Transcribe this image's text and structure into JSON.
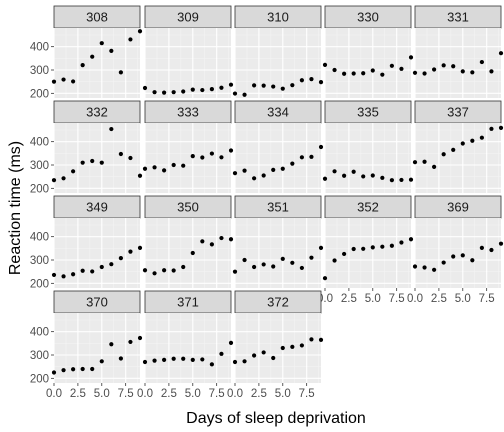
{
  "chart_data": {
    "type": "scatter",
    "facet_by": "Subject",
    "xlabel": "Days of sleep deprivation",
    "ylabel": "Reaction time (ms)",
    "xlim": [
      0,
      9
    ],
    "ylim": [
      180,
      480
    ],
    "x_ticks": [
      0,
      2.5,
      5,
      7.5
    ],
    "x_tick_labels": [
      "0.0",
      "2.5",
      "5.0",
      "7.5"
    ],
    "y_ticks": [
      200,
      300,
      400
    ],
    "y_tick_labels": [
      "200",
      "300",
      "400"
    ],
    "x": [
      0,
      1,
      2,
      3,
      4,
      5,
      6,
      7,
      8,
      9
    ],
    "panels": [
      {
        "name": "308",
        "values": [
          250,
          259,
          251,
          321,
          357,
          415,
          382,
          290,
          431,
          466
        ]
      },
      {
        "name": "309",
        "values": [
          223,
          205,
          203,
          205,
          208,
          216,
          214,
          218,
          224,
          237
        ]
      },
      {
        "name": "310",
        "values": [
          199,
          194,
          234,
          233,
          229,
          220,
          235,
          256,
          261,
          248
        ]
      },
      {
        "name": "330",
        "values": [
          322,
          300,
          284,
          285,
          286,
          298,
          280,
          318,
          305,
          354
        ]
      },
      {
        "name": "331",
        "values": [
          288,
          285,
          302,
          320,
          316,
          294,
          290,
          334,
          294,
          372
        ]
      },
      {
        "name": "332",
        "values": [
          235,
          243,
          273,
          310,
          317,
          310,
          454,
          347,
          330,
          254
        ]
      },
      {
        "name": "333",
        "values": [
          284,
          290,
          277,
          300,
          297,
          338,
          332,
          349,
          333,
          362
        ]
      },
      {
        "name": "334",
        "values": [
          265,
          276,
          243,
          255,
          279,
          284,
          306,
          333,
          335,
          377
        ]
      },
      {
        "name": "335",
        "values": [
          241,
          273,
          254,
          271,
          251,
          255,
          245,
          235,
          236,
          237
        ]
      },
      {
        "name": "337",
        "values": [
          312,
          314,
          292,
          346,
          365,
          392,
          404,
          417,
          455,
          459
        ]
      },
      {
        "name": "349",
        "values": [
          236,
          230,
          239,
          254,
          251,
          270,
          282,
          308,
          336,
          352
        ]
      },
      {
        "name": "350",
        "values": [
          256,
          243,
          256,
          255,
          270,
          330,
          380,
          367,
          394,
          389
        ]
      },
      {
        "name": "351",
        "values": [
          250,
          300,
          270,
          281,
          272,
          305,
          288,
          266,
          310,
          352
        ]
      },
      {
        "name": "352",
        "values": [
          222,
          298,
          326,
          347,
          348,
          354,
          357,
          361,
          375,
          389
        ]
      },
      {
        "name": "369",
        "values": [
          272,
          268,
          258,
          289,
          315,
          320,
          299,
          352,
          343,
          370
        ]
      },
      {
        "name": "370",
        "values": [
          225,
          235,
          239,
          240,
          240,
          273,
          346,
          285,
          356,
          373
        ]
      },
      {
        "name": "371",
        "values": [
          270,
          276,
          279,
          284,
          284,
          279,
          281,
          260,
          305,
          352
        ]
      },
      {
        "name": "372",
        "values": [
          270,
          273,
          298,
          311,
          287,
          330,
          335,
          341,
          367,
          365
        ]
      }
    ]
  },
  "colors": {
    "panel_background": "#ebebeb",
    "strip_background": "#d9d9d9",
    "strip_border": "#333333",
    "grid_major": "#ffffff",
    "grid_minor": "#f4f4f4",
    "point": "#000000"
  }
}
